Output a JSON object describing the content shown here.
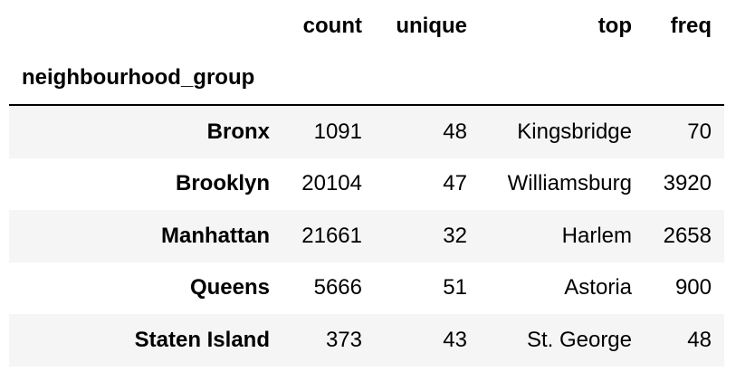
{
  "table": {
    "columns": [
      "count",
      "unique",
      "top",
      "freq"
    ],
    "index_name": "neighbourhood_group",
    "rows": [
      {
        "index": "Bronx",
        "count": "1091",
        "unique": "48",
        "top": "Kingsbridge",
        "freq": "70"
      },
      {
        "index": "Brooklyn",
        "count": "20104",
        "unique": "47",
        "top": "Williamsburg",
        "freq": "3920"
      },
      {
        "index": "Manhattan",
        "count": "21661",
        "unique": "32",
        "top": "Harlem",
        "freq": "2658"
      },
      {
        "index": "Queens",
        "count": "5666",
        "unique": "51",
        "top": "Astoria",
        "freq": "900"
      },
      {
        "index": "Staten Island",
        "count": "373",
        "unique": "43",
        "top": "St. George",
        "freq": "48"
      }
    ]
  },
  "colors": {
    "stripe": "#f5f5f5",
    "text": "#000000",
    "rule": "#000000"
  }
}
